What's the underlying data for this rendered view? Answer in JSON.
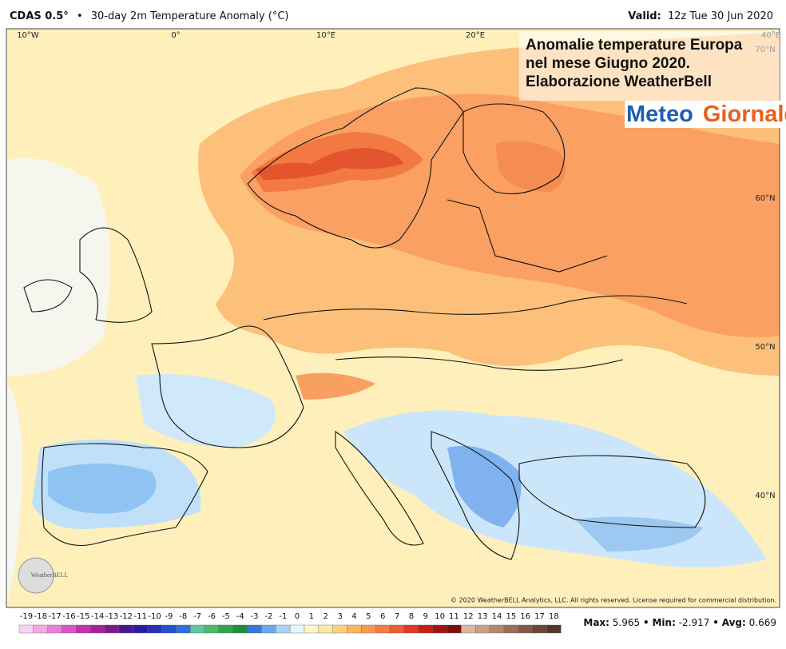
{
  "header": {
    "model": "CDAS 0.5°",
    "separator": "•",
    "title": "30-day 2m Temperature Anomaly (°C)",
    "valid_label": "Valid:",
    "valid": "12z Tue 30 Jun 2020"
  },
  "map": {
    "lon_labels": [
      "10°W",
      "0°",
      "10°E",
      "20°E",
      "40°E"
    ],
    "lat_labels": [
      "70°N",
      "60°N",
      "50°N",
      "40°N"
    ],
    "overlay": [
      "Anomalie temperature Europa",
      "nel mese Giugno 2020.",
      "Elaborazione WeatherBell"
    ],
    "logo": [
      "Meteo",
      "Giornale"
    ],
    "watermark": "WeatherBELL",
    "copyright": "© 2020 WeatherBELL Analytics, LLC. All rights reserved. License required for commercial distribution."
  },
  "colorbar": {
    "ticks": [
      -19,
      -18,
      -17,
      -16,
      -15,
      -14,
      -13,
      -12,
      -11,
      -10,
      -9,
      -8,
      -7,
      -6,
      -5,
      -4,
      -3,
      -2,
      -1,
      0,
      1,
      2,
      3,
      4,
      5,
      6,
      7,
      8,
      9,
      10,
      11,
      12,
      13,
      14,
      15,
      16,
      17,
      18
    ],
    "colors": [
      "#f9d0f0",
      "#f2a8e6",
      "#e87fda",
      "#d955c8",
      "#c52fb4",
      "#a4229e",
      "#7b1a8e",
      "#4b1490",
      "#2c1a9e",
      "#2630b4",
      "#2450cc",
      "#2e6fe0",
      "#5cc6a0",
      "#4cb86a",
      "#2ea84a",
      "#1f8e3a",
      "#3a78d8",
      "#6aa8ee",
      "#a8d4f8",
      "#e8f4fc",
      "#fdf6c8",
      "#fde9a0",
      "#fdd27a",
      "#fbb860",
      "#f89a50",
      "#f47c40",
      "#ee5c30",
      "#e03a22",
      "#c81e1a",
      "#a41212",
      "#7e0c0c",
      "#d8b8a0",
      "#c8a088",
      "#b08a70",
      "#987058",
      "#805a44",
      "#6a4634",
      "#563426"
    ]
  },
  "stats": {
    "max_label": "Max:",
    "max": 5.965,
    "separator": "•",
    "min_label": "Min:",
    "min": -2.917,
    "avg_label": "Avg:",
    "avg": 0.669
  }
}
